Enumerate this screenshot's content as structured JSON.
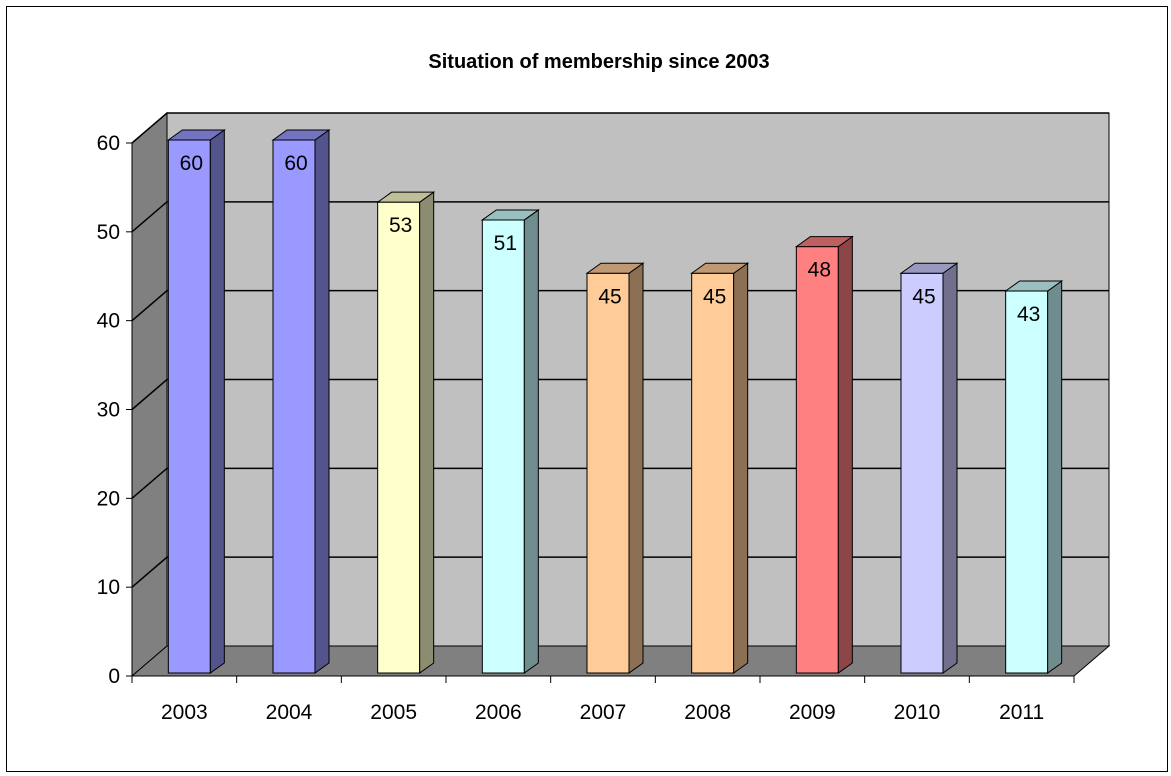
{
  "chart_data": {
    "type": "bar",
    "title": "Situation of membership since 2003",
    "xlabel": "",
    "ylabel": "",
    "categories": [
      "2003",
      "2004",
      "2005",
      "2006",
      "2007",
      "2008",
      "2009",
      "2010",
      "2011"
    ],
    "values": [
      60,
      60,
      53,
      51,
      45,
      45,
      48,
      45,
      43
    ],
    "data_labels": [
      "60",
      "60",
      "53",
      "51",
      "45",
      "45",
      "48",
      "45",
      "43"
    ],
    "colors": [
      "#9999ff",
      "#9999ff",
      "#ffffcc",
      "#ccffff",
      "#ffcc99",
      "#ffcc99",
      "#ff8080",
      "#ccccff",
      "#ccffff"
    ],
    "ylim": [
      0,
      60
    ],
    "yticks": [
      "0",
      "10",
      "20",
      "30",
      "40",
      "50",
      "60"
    ],
    "gridlines": true,
    "legend": "none",
    "style": "3d",
    "wall_color": "#c0c0c0",
    "side_wall_color": "#808080",
    "floor_color": "#808080"
  }
}
